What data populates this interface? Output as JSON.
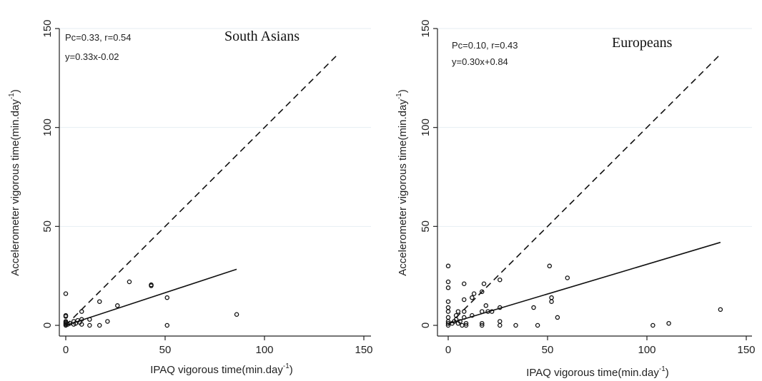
{
  "chart_data": [
    {
      "type": "scatter",
      "title": "South Asians",
      "xlabel": "IPAQ vigorous time(min.day",
      "xlabel_sup": "-1",
      "xlabel_suffix": ")",
      "ylabel": "Accelerometer vigorous time(min.day",
      "ylabel_sup": "-1",
      "ylabel_suffix": ")",
      "xlim": [
        0,
        150
      ],
      "ylim": [
        0,
        150
      ],
      "xticks": [
        0,
        50,
        100,
        150
      ],
      "yticks": [
        0,
        50,
        100,
        150
      ],
      "annotations": [
        "Pc=0.33, r=0.54",
        "y=0.33x-0.02"
      ],
      "identity_line": {
        "style": "dashed",
        "x": [
          0,
          137
        ],
        "y": [
          0,
          137
        ]
      },
      "fit_line": {
        "style": "solid",
        "x": [
          0,
          86
        ],
        "y": [
          -0.02,
          28.36
        ]
      },
      "points": [
        [
          0,
          16
        ],
        [
          0,
          5
        ],
        [
          0,
          4.5
        ],
        [
          0,
          2
        ],
        [
          0,
          1.5
        ],
        [
          0,
          1
        ],
        [
          0,
          0.5
        ],
        [
          0,
          0
        ],
        [
          1,
          0.5
        ],
        [
          2,
          1
        ],
        [
          4,
          0.5
        ],
        [
          4,
          2
        ],
        [
          5,
          1
        ],
        [
          6,
          2.5
        ],
        [
          7,
          1.5
        ],
        [
          8,
          0.5
        ],
        [
          8,
          3
        ],
        [
          8,
          7
        ],
        [
          12,
          3
        ],
        [
          12,
          0
        ],
        [
          17,
          12
        ],
        [
          17,
          0
        ],
        [
          21,
          2
        ],
        [
          26,
          10
        ],
        [
          32,
          22
        ],
        [
          43,
          20.5
        ],
        [
          43,
          20
        ],
        [
          51,
          14
        ],
        [
          51,
          0
        ],
        [
          86,
          5.5
        ]
      ]
    },
    {
      "type": "scatter",
      "title": "Europeans",
      "xlabel": "IPAQ vigorous time(min.day",
      "xlabel_sup": "-1",
      "xlabel_suffix": ")",
      "ylabel": "Accelerometer vigorous time(min.day",
      "ylabel_sup": "-1",
      "ylabel_suffix": ")",
      "xlim": [
        0,
        150
      ],
      "ylim": [
        0,
        150
      ],
      "xticks": [
        0,
        50,
        100,
        150
      ],
      "yticks": [
        0,
        50,
        100,
        150
      ],
      "annotations": [
        "Pc=0.10, r=0.43",
        "y=0.30x+0.84"
      ],
      "identity_line": {
        "style": "dashed",
        "x": [
          0,
          136
        ],
        "y": [
          0,
          136
        ]
      },
      "fit_line": {
        "style": "solid",
        "x": [
          0,
          137
        ],
        "y": [
          0.84,
          41.94
        ]
      },
      "points": [
        [
          0,
          30
        ],
        [
          0,
          22
        ],
        [
          0,
          19
        ],
        [
          0,
          12
        ],
        [
          0,
          9
        ],
        [
          0,
          7
        ],
        [
          0,
          4
        ],
        [
          0,
          2
        ],
        [
          0,
          1
        ],
        [
          0,
          0
        ],
        [
          2,
          1
        ],
        [
          3,
          2
        ],
        [
          4,
          5
        ],
        [
          4,
          3
        ],
        [
          5,
          7
        ],
        [
          5,
          1
        ],
        [
          6,
          2
        ],
        [
          7,
          0
        ],
        [
          8,
          21
        ],
        [
          8,
          13
        ],
        [
          8,
          7
        ],
        [
          8,
          4
        ],
        [
          9,
          1
        ],
        [
          9,
          0
        ],
        [
          12,
          14
        ],
        [
          12,
          5
        ],
        [
          13,
          16
        ],
        [
          17,
          17
        ],
        [
          17,
          7
        ],
        [
          17,
          1
        ],
        [
          17,
          0
        ],
        [
          18,
          21
        ],
        [
          19,
          10
        ],
        [
          20,
          7
        ],
        [
          22,
          7
        ],
        [
          26,
          23
        ],
        [
          26,
          9
        ],
        [
          26,
          2
        ],
        [
          26,
          0
        ],
        [
          34,
          0
        ],
        [
          43,
          9
        ],
        [
          45,
          0
        ],
        [
          51,
          30
        ],
        [
          52,
          14
        ],
        [
          52,
          12
        ],
        [
          55,
          4
        ],
        [
          60,
          24
        ],
        [
          103,
          0
        ],
        [
          111,
          1
        ],
        [
          137,
          8
        ]
      ]
    }
  ]
}
